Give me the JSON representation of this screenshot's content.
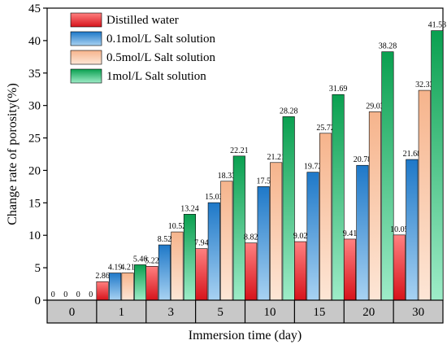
{
  "chart_data": {
    "type": "bar",
    "title": "",
    "xlabel": "Immersion time (day)",
    "ylabel": "Change rate of porosity(%)",
    "categories": [
      "0",
      "1",
      "3",
      "5",
      "10",
      "15",
      "20",
      "30"
    ],
    "ylim": [
      0,
      45
    ],
    "yticks": [
      0,
      5,
      10,
      15,
      20,
      25,
      30,
      35,
      40,
      45
    ],
    "grid": false,
    "legend_position": "top-left",
    "series": [
      {
        "name": "Distilled water",
        "values": [
          0,
          2.86,
          5.22,
          7.94,
          8.82,
          9.02,
          9.41,
          10.05
        ],
        "labels": [
          "0",
          "2.86",
          "5.22",
          "7.94",
          "8.82",
          "9.02",
          "9.41",
          "10.05"
        ],
        "color_top": "#ff8080",
        "color_bottom": "#d6131b"
      },
      {
        "name": "0.1mol/L Salt solution",
        "values": [
          0,
          4.19,
          8.52,
          15.03,
          17.5,
          19.72,
          20.78,
          21.68
        ],
        "labels": [
          "0",
          "4.19",
          "8.52",
          "15.03",
          "17.5",
          "19.72",
          "20.78",
          "21.68"
        ],
        "color_top": "#1e78c8",
        "color_bottom": "#a8d2f2"
      },
      {
        "name": "0.5mol/L Salt solution",
        "values": [
          0,
          4.21,
          10.52,
          18.33,
          21.21,
          25.72,
          29.03,
          32.33
        ],
        "labels": [
          "0",
          "4.21",
          "10.52",
          "18.33",
          "21.21",
          "25.72",
          "29.03",
          "32.33"
        ],
        "color_top": "#f6b48c",
        "color_bottom": "#fde6d6"
      },
      {
        "name": "1mol/L Salt solution",
        "values": [
          0,
          5.46,
          13.24,
          22.21,
          28.28,
          31.69,
          38.28,
          41.53
        ],
        "labels": [
          "0",
          "5.46",
          "13.24",
          "22.21",
          "28.28",
          "31.69",
          "38.28",
          "41.53"
        ],
        "color_top": "#0aa050",
        "color_bottom": "#9eecc8"
      }
    ]
  }
}
